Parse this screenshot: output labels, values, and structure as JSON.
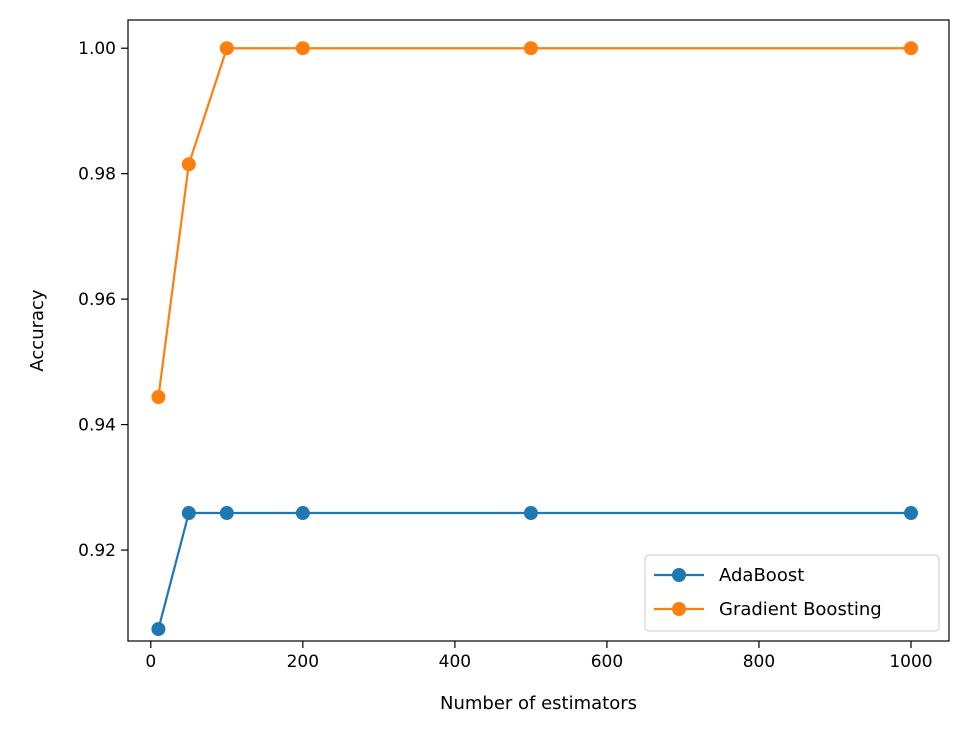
{
  "chart_data": {
    "type": "line",
    "title": "",
    "xlabel": "Number of estimators",
    "ylabel": "Accuracy",
    "x": [
      10,
      50,
      100,
      200,
      500,
      1000
    ],
    "xlim": [
      -30,
      1050
    ],
    "ylim": [
      0.9055,
      1.0045
    ],
    "xticks": [
      0,
      200,
      400,
      600,
      800,
      1000
    ],
    "xtick_labels": [
      "0",
      "200",
      "400",
      "600",
      "800",
      "1000"
    ],
    "yticks": [
      0.92,
      0.94,
      0.96,
      0.98,
      1.0
    ],
    "ytick_labels": [
      "0.92",
      "0.94",
      "0.96",
      "0.98",
      "1.00"
    ],
    "grid": false,
    "legend_position": "bottom-right",
    "series": [
      {
        "name": "AdaBoost",
        "color": "#1f77b4",
        "marker": "circle",
        "values": [
          0.9074,
          0.9259,
          0.9259,
          0.9259,
          0.9259,
          0.9259
        ]
      },
      {
        "name": "Gradient Boosting",
        "color": "#ff7f0e",
        "marker": "circle",
        "values": [
          0.9444,
          0.9815,
          1.0,
          1.0,
          1.0,
          1.0
        ]
      }
    ]
  }
}
